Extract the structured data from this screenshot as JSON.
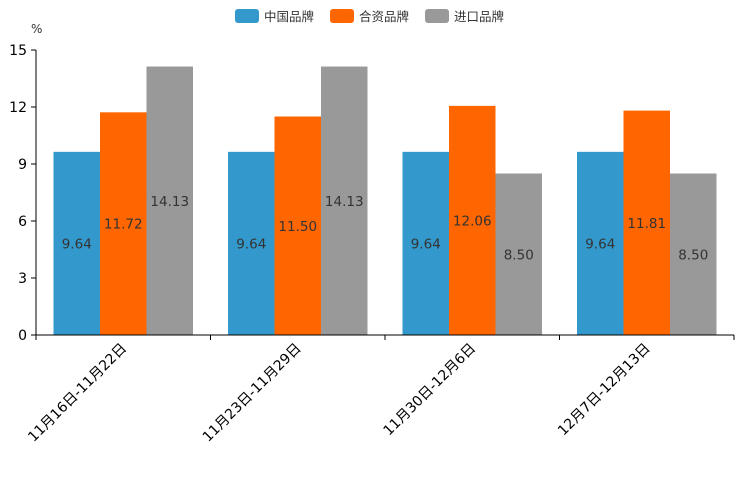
{
  "chart_data": {
    "type": "bar",
    "title": "",
    "unit_label": "%",
    "xlabel": "",
    "ylabel": "%",
    "ylim": [
      0,
      15
    ],
    "yticks": [
      0,
      3,
      6,
      9,
      12,
      15
    ],
    "grid": false,
    "legend_position": "top-center",
    "categories": [
      "11月16日-11月22日",
      "11月23日-11月29日",
      "11月30日-12月6日",
      "12月7日-12月13日"
    ],
    "series": [
      {
        "name": "中国品牌",
        "color": "#3399CC",
        "values": [
          9.64,
          9.64,
          9.64,
          9.64
        ],
        "labels": [
          "9.64",
          "9.64",
          "9.64",
          "9.64"
        ]
      },
      {
        "name": "合资品牌",
        "color": "#FF6600",
        "values": [
          11.72,
          11.5,
          12.06,
          11.81
        ],
        "labels": [
          "11.72",
          "11.50",
          "12.06",
          "11.81"
        ]
      },
      {
        "name": "进口品牌",
        "color": "#999999",
        "values": [
          14.13,
          14.13,
          8.5,
          8.5
        ],
        "labels": [
          "14.13",
          "14.13",
          "8.50",
          "8.50"
        ]
      }
    ]
  }
}
